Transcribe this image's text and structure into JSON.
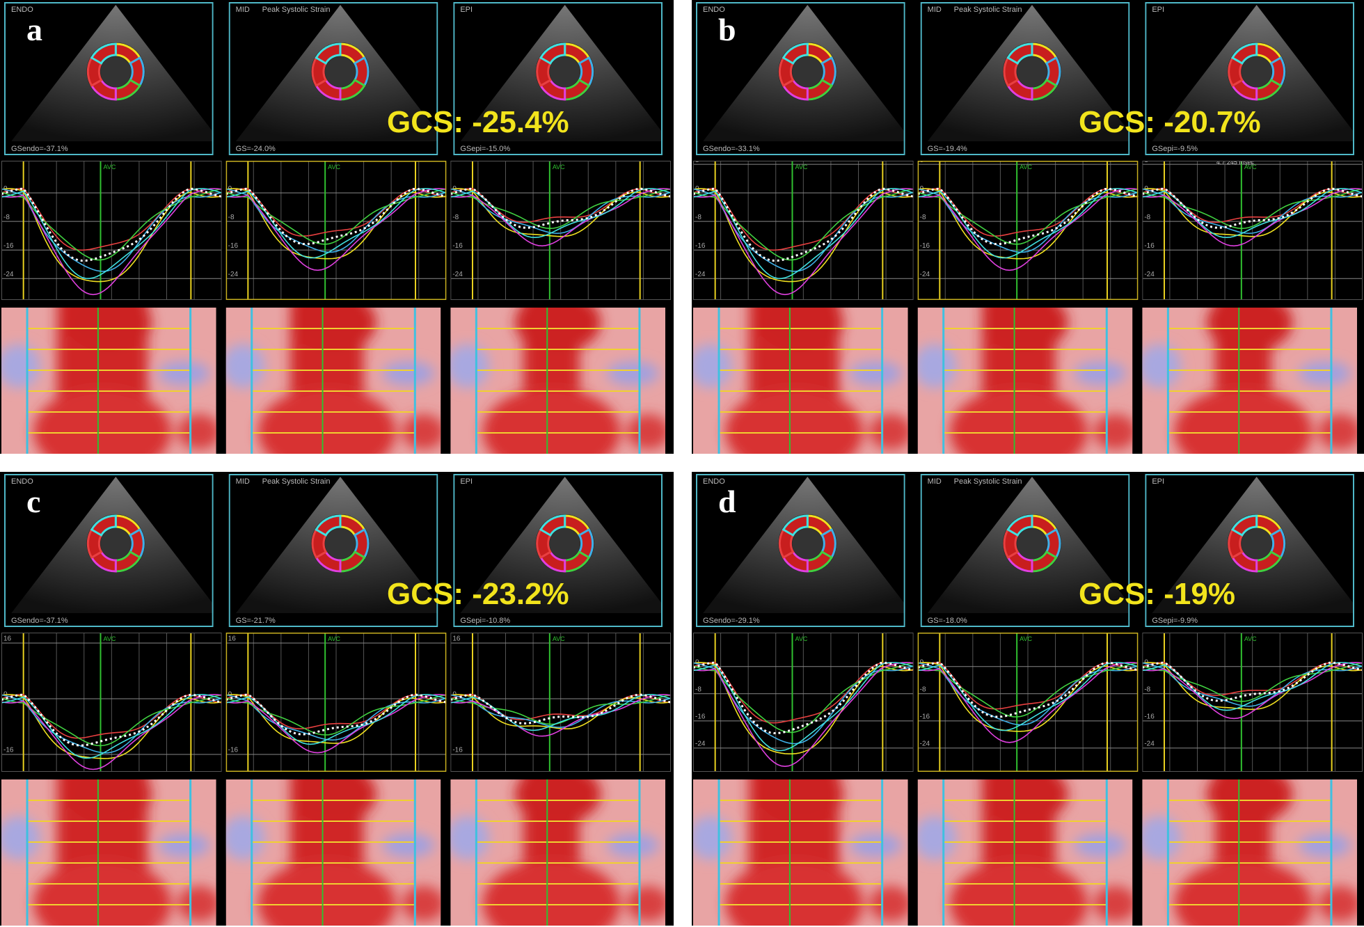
{
  "panels": [
    {
      "letter": "a",
      "gcs": "GCS: -25.4%",
      "avc": "AVC",
      "views": [
        {
          "layer": "ENDO",
          "global": "GSendo=-37.1%"
        },
        {
          "layer": "MID",
          "title": "Peak Systolic Strain",
          "global": "GS=-24.0%"
        },
        {
          "layer": "EPI",
          "global": "GSepi=-15.0%"
        }
      ],
      "ylim": [
        -30,
        9
      ],
      "yticks": [
        0,
        -8,
        -16,
        -24
      ]
    },
    {
      "letter": "b",
      "gcs": "GCS: -20.7%",
      "avc": "AVC",
      "annotation": "4.7  245 msec",
      "views": [
        {
          "layer": "ENDO",
          "global": "GSendo=-33.1%"
        },
        {
          "layer": "MID",
          "title": "Peak Systolic Strain",
          "global": "GS=-19.4%"
        },
        {
          "layer": "EPI",
          "global": "GSepi=-9.5%"
        }
      ],
      "ylim": [
        -30,
        9
      ],
      "yticks": [
        8,
        0,
        -8,
        -16,
        -24
      ]
    },
    {
      "letter": "c",
      "gcs": "GCS: -23.2%",
      "avc": "AVC",
      "views": [
        {
          "layer": "ENDO",
          "global": "GSendo=-37.1%"
        },
        {
          "layer": "MID",
          "title": "Peak Systolic Strain",
          "global": "GS=-21.7%"
        },
        {
          "layer": "EPI",
          "global": "GSepi=-10.8%"
        }
      ],
      "ylim": [
        -21,
        19
      ],
      "yticks": [
        16,
        0,
        -16
      ]
    },
    {
      "letter": "d",
      "gcs": "GCS: -19%",
      "avc": "AVC",
      "views": [
        {
          "layer": "ENDO",
          "global": "GSendo=-29.1%"
        },
        {
          "layer": "MID",
          "title": "Peak Systolic Strain",
          "global": "GS=-18.0%"
        },
        {
          "layer": "EPI",
          "global": "GSepi=-9.9%"
        }
      ],
      "ylim": [
        -31,
        10
      ],
      "yticks": [
        0,
        -8,
        -16,
        -24
      ]
    }
  ]
}
